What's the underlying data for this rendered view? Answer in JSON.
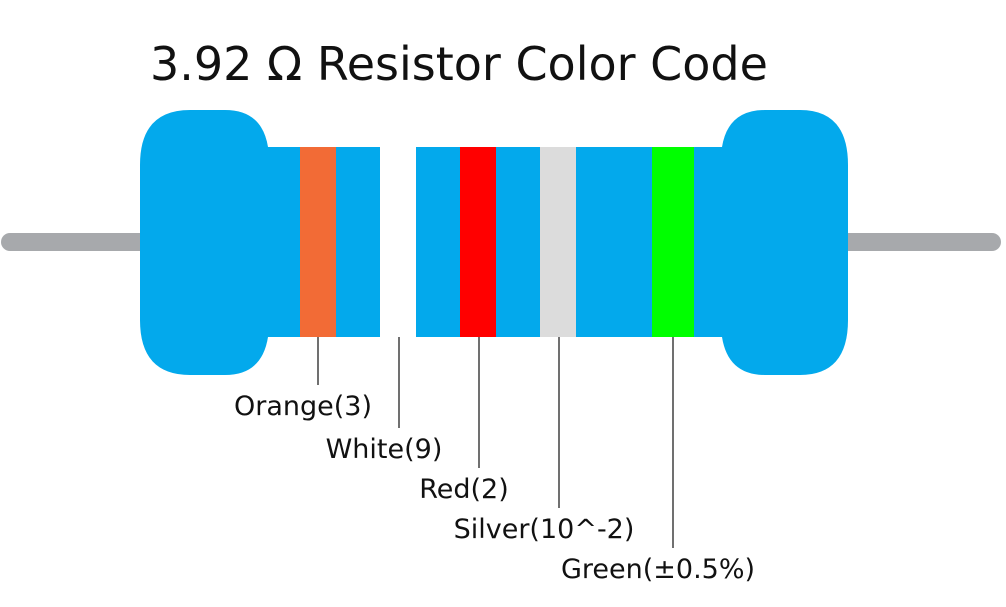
{
  "title": "3.92 Ω Resistor Color Code",
  "bands": [
    {
      "label": "Orange(3)",
      "color": "#f26b36"
    },
    {
      "label": "White(9)",
      "color": "#ffffff"
    },
    {
      "label": "Red(2)",
      "color": "#ff0000"
    },
    {
      "label": "Silver(10^-2)",
      "color": "#dcdcdc"
    },
    {
      "label": "Green(±0.5%)",
      "color": "#00ff00"
    }
  ]
}
